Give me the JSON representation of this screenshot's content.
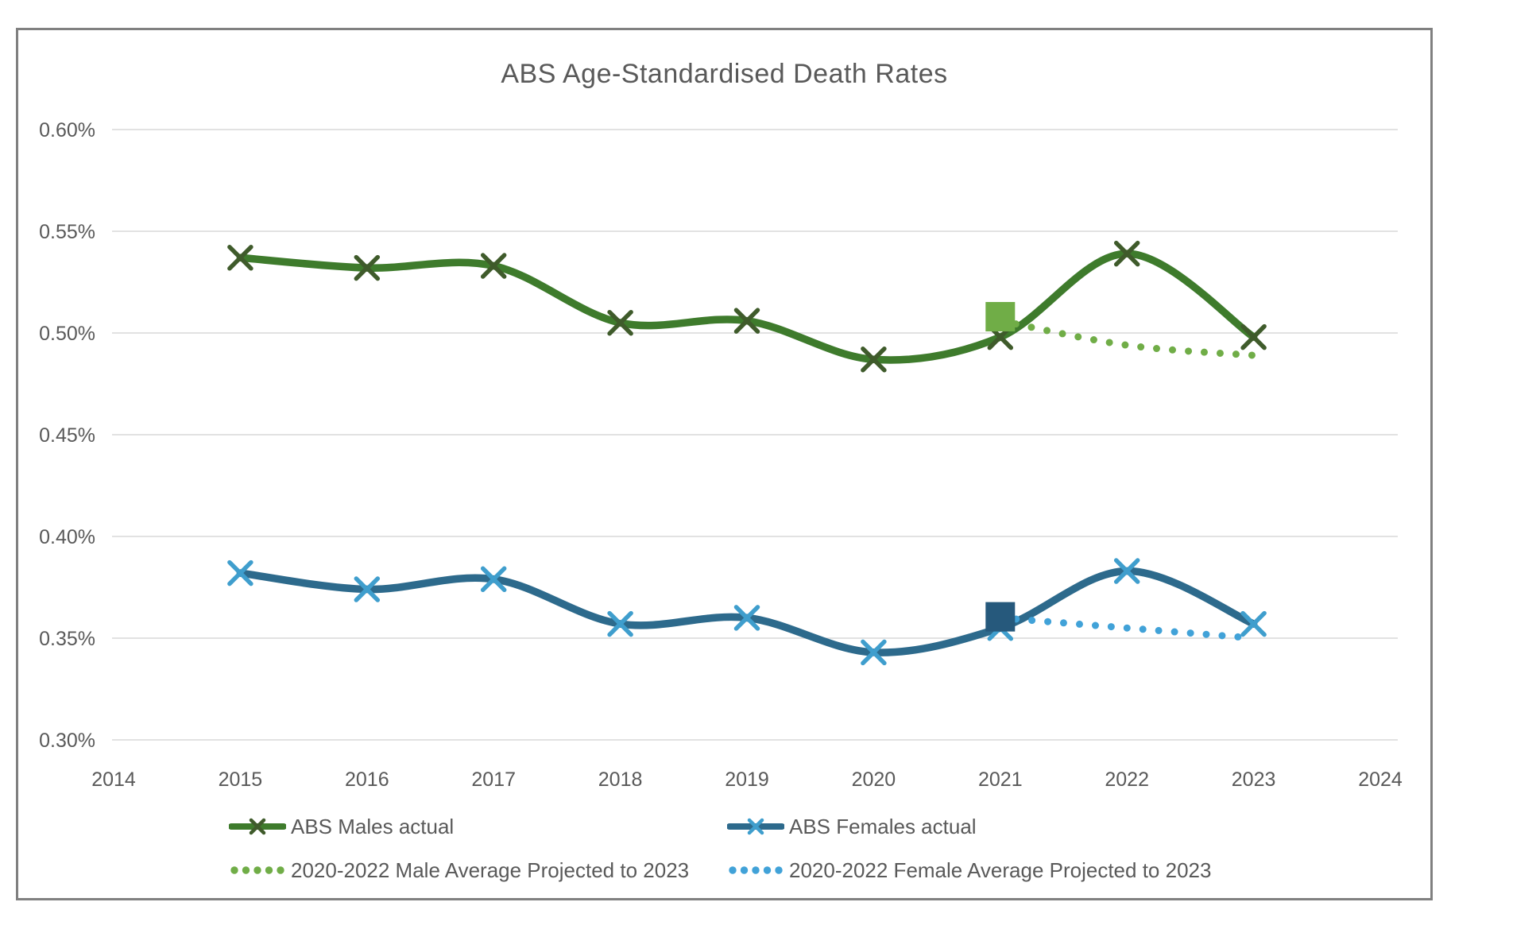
{
  "chart": {
    "border_color": "#808080",
    "background": "#ffffff",
    "text_color": "#595959",
    "gridline_color": "#d9d9d9"
  },
  "legend": {
    "items": [
      {
        "label": "ABS Males actual"
      },
      {
        "label": "ABS Females actual"
      },
      {
        "label": "2020-2022 Male Average Projected to 2023"
      },
      {
        "label": "2020-2022 Female Average Projected to 2023"
      }
    ]
  },
  "chart_data": {
    "type": "line",
    "title": "ABS Age-Standardised Death Rates",
    "unit": "% (age-standardised death rate)",
    "grid": true,
    "legend_position": "bottom",
    "x": {
      "min": 2014,
      "max": 2024,
      "tick_values": [
        2014,
        2015,
        2016,
        2017,
        2018,
        2019,
        2020,
        2021,
        2022,
        2023,
        2024
      ],
      "tick_labels": [
        "2014",
        "2015",
        "2016",
        "2017",
        "2018",
        "2019",
        "2020",
        "2021",
        "2022",
        "2023",
        "2024"
      ]
    },
    "y": {
      "min": 0.3,
      "max": 0.6,
      "tick_values": [
        0.6,
        0.55,
        0.5,
        0.45,
        0.4,
        0.35,
        0.3
      ],
      "tick_labels": [
        "0.60%",
        "0.55%",
        "0.50%",
        "0.45%",
        "0.40%",
        "0.35%",
        "0.30%"
      ]
    },
    "series": [
      {
        "id": "males-actual",
        "name": "ABS Males actual",
        "style": "solid",
        "color": "#3e7b2c",
        "marker": "x",
        "marker_color": "#3f5b2b",
        "years": [
          2015,
          2016,
          2017,
          2018,
          2019,
          2020,
          2021,
          2022,
          2023
        ],
        "values": [
          0.537,
          0.532,
          0.533,
          0.505,
          0.506,
          0.487,
          0.498,
          0.539,
          0.498
        ]
      },
      {
        "id": "females-actual",
        "name": "ABS Females actual",
        "style": "solid",
        "color": "#2d6a8c",
        "marker": "x",
        "marker_color": "#3f9ecd",
        "years": [
          2015,
          2016,
          2017,
          2018,
          2019,
          2020,
          2021,
          2022,
          2023
        ],
        "values": [
          0.382,
          0.374,
          0.379,
          0.357,
          0.36,
          0.343,
          0.355,
          0.383,
          0.357
        ]
      },
      {
        "id": "male-projection",
        "name": "2020-2022 Male Average Projected to 2023",
        "style": "dotted",
        "color": "#70ad47",
        "years": [
          2021,
          2022,
          2023
        ],
        "values": [
          0.506,
          0.494,
          0.489
        ],
        "start_square": {
          "year": 2021,
          "value": 0.508,
          "color": "#70ad47"
        }
      },
      {
        "id": "female-projection",
        "name": "2020-2022 Female Average Projected to 2023",
        "style": "dotted",
        "color": "#41a2d8",
        "years": [
          2021,
          2022,
          2023
        ],
        "values": [
          0.36,
          0.355,
          0.35
        ],
        "start_square": {
          "year": 2021,
          "value": 0.3605,
          "color": "#26597c"
        }
      }
    ]
  }
}
